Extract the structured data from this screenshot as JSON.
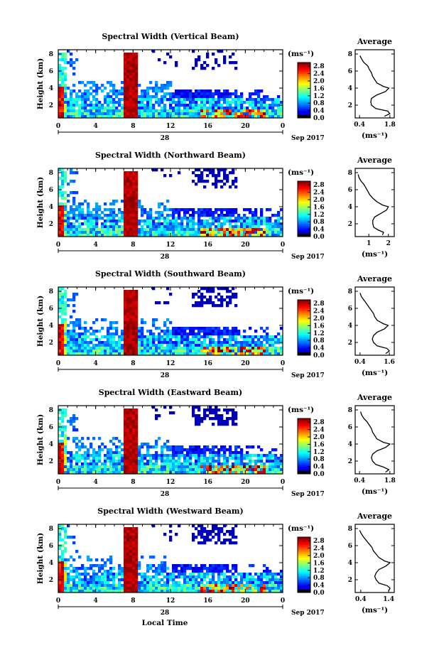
{
  "chart_data": [
    {
      "type": "heatmap",
      "title": "Spectral Width (Vertical Beam)",
      "ylabel": "Height (km)",
      "y_ticks": [
        "2",
        "4",
        "6",
        "8"
      ],
      "x_ticks": [
        "0",
        "4",
        "8",
        "12",
        "16",
        "20",
        "0"
      ],
      "date_day": "28",
      "month_label": "Sep 2017",
      "colorbar": {
        "unit": "(ms⁻¹)",
        "ticks": [
          "0.0",
          "0.4",
          "0.8",
          "1.2",
          "1.6",
          "2.0",
          "2.4",
          "2.8"
        ],
        "range": [
          0,
          3.0
        ]
      },
      "average": {
        "title": "Average",
        "xlabel": "(ms⁻¹)",
        "x_ticks": [
          "0.4",
          "1.8"
        ],
        "xlim": [
          0.2,
          2.0
        ],
        "y_ticks": [
          "2",
          "4",
          "6",
          "8"
        ],
        "heights": [
          0.7,
          1.0,
          1.3,
          1.6,
          2.0,
          2.4,
          2.8,
          3.2,
          3.6,
          4.0,
          4.2,
          4.6,
          5.0,
          5.4,
          5.8,
          6.2,
          6.6,
          7.0,
          7.4,
          7.8
        ],
        "values": [
          1.55,
          1.8,
          1.7,
          1.15,
          0.95,
          0.92,
          0.95,
          1.2,
          1.6,
          1.75,
          1.5,
          1.2,
          1.1,
          1.0,
          0.95,
          0.85,
          0.78,
          0.6,
          0.5,
          0.42
        ]
      }
    },
    {
      "type": "heatmap",
      "title": "Spectral Width (Northward Beam)",
      "ylabel": "Height (km)",
      "y_ticks": [
        "2",
        "4",
        "6",
        "8"
      ],
      "x_ticks": [
        "0",
        "4",
        "8",
        "12",
        "16",
        "20",
        "0"
      ],
      "date_day": "28",
      "month_label": "Sep 2017",
      "colorbar": {
        "unit": "(ms⁻¹)",
        "ticks": [
          "0.0",
          "0.4",
          "0.8",
          "1.2",
          "1.6",
          "2.0",
          "2.4",
          "2.8"
        ],
        "range": [
          0,
          3.0
        ]
      },
      "average": {
        "title": "Average",
        "xlabel": "(ms⁻¹)",
        "x_ticks": [
          "1",
          "2"
        ],
        "xlim": [
          0.3,
          2.3
        ],
        "y_ticks": [
          "2",
          "4",
          "6",
          "8"
        ],
        "heights": [
          0.7,
          1.0,
          1.3,
          1.6,
          2.0,
          2.4,
          2.8,
          3.2,
          3.6,
          4.0,
          4.2,
          4.6,
          5.0,
          5.4,
          5.8,
          6.2,
          6.6,
          7.0,
          7.4,
          7.8
        ],
        "values": [
          1.7,
          1.75,
          1.45,
          1.25,
          1.2,
          1.2,
          1.3,
          1.6,
          1.9,
          2.0,
          1.7,
          1.4,
          1.2,
          1.05,
          0.95,
          0.85,
          0.75,
          0.6,
          0.5,
          0.45
        ]
      }
    },
    {
      "type": "heatmap",
      "title": "Spectral Width (Southward Beam)",
      "ylabel": "Height (km)",
      "y_ticks": [
        "2",
        "4",
        "6",
        "8"
      ],
      "x_ticks": [
        "0",
        "4",
        "8",
        "12",
        "16",
        "20",
        "0"
      ],
      "date_day": "28",
      "month_label": "Sep 2017",
      "colorbar": {
        "unit": "(ms⁻¹)",
        "ticks": [
          "0.0",
          "0.4",
          "0.8",
          "1.2",
          "1.6",
          "2.0",
          "2.4",
          "2.8"
        ],
        "range": [
          0,
          3.0
        ]
      },
      "average": {
        "title": "Average",
        "xlabel": "(ms⁻¹)",
        "x_ticks": [
          "0.4",
          "1.6"
        ],
        "xlim": [
          0.2,
          1.8
        ],
        "y_ticks": [
          "2",
          "4",
          "6",
          "8"
        ],
        "heights": [
          0.7,
          1.0,
          1.3,
          1.6,
          2.0,
          2.4,
          2.8,
          3.2,
          3.6,
          4.0,
          4.2,
          4.6,
          5.0,
          5.4,
          5.8,
          6.2,
          6.6,
          7.0,
          7.4,
          7.8
        ],
        "values": [
          1.45,
          1.6,
          1.5,
          1.1,
          0.95,
          0.9,
          0.95,
          1.1,
          1.4,
          1.55,
          1.35,
          1.1,
          1.0,
          0.95,
          0.85,
          0.75,
          0.65,
          0.55,
          0.45,
          0.4
        ]
      }
    },
    {
      "type": "heatmap",
      "title": "Spectral Width (Eastward Beam)",
      "ylabel": "Height (km)",
      "y_ticks": [
        "2",
        "4",
        "6",
        "8"
      ],
      "x_ticks": [
        "0",
        "4",
        "8",
        "12",
        "16",
        "20",
        "0"
      ],
      "date_day": "28",
      "month_label": "Sep 2017",
      "colorbar": {
        "unit": "(ms⁻¹)",
        "ticks": [
          "0.0",
          "0.4",
          "0.8",
          "1.2",
          "1.6",
          "2.0",
          "2.4",
          "2.8"
        ],
        "range": [
          0,
          3.0
        ]
      },
      "average": {
        "title": "Average",
        "xlabel": "(ms⁻¹)",
        "x_ticks": [
          "0.4",
          "1.8"
        ],
        "xlim": [
          0.2,
          2.0
        ],
        "y_ticks": [
          "2",
          "4",
          "6",
          "8"
        ],
        "heights": [
          0.7,
          1.0,
          1.3,
          1.6,
          2.0,
          2.4,
          2.8,
          3.2,
          3.6,
          4.0,
          4.2,
          4.6,
          5.0,
          5.4,
          5.8,
          6.2,
          6.6,
          7.0,
          7.4,
          7.8
        ],
        "values": [
          1.6,
          1.75,
          1.5,
          1.15,
          1.0,
          0.95,
          1.0,
          1.2,
          1.6,
          1.8,
          1.5,
          1.2,
          1.1,
          1.0,
          0.95,
          0.85,
          0.75,
          0.6,
          0.5,
          0.45
        ]
      }
    },
    {
      "type": "heatmap",
      "title": "Spectral Width (Westward Beam)",
      "ylabel": "Height (km)",
      "y_ticks": [
        "2",
        "4",
        "6",
        "8"
      ],
      "x_ticks": [
        "0",
        "4",
        "8",
        "12",
        "16",
        "20",
        "0"
      ],
      "date_day": "28",
      "month_label": "Sep 2017",
      "xlabel": "Local Time",
      "colorbar": {
        "unit": "(ms⁻¹)",
        "ticks": [
          "0.0",
          "0.4",
          "0.8",
          "1.2",
          "1.6",
          "2.0",
          "2.4",
          "2.8"
        ],
        "range": [
          0,
          3.0
        ]
      },
      "average": {
        "title": "Average",
        "xlabel": "(ms⁻¹)",
        "x_ticks": [
          "0.4",
          "1.4"
        ],
        "xlim": [
          0.2,
          1.6
        ],
        "y_ticks": [
          "2",
          "4",
          "6",
          "8"
        ],
        "heights": [
          0.7,
          1.0,
          1.3,
          1.6,
          2.0,
          2.4,
          2.8,
          3.2,
          3.6,
          4.0,
          4.2,
          4.6,
          5.0,
          5.4,
          5.8,
          6.2,
          6.6,
          7.0,
          7.4,
          7.8
        ],
        "values": [
          1.4,
          1.45,
          1.35,
          1.05,
          0.95,
          0.9,
          0.95,
          1.05,
          1.3,
          1.45,
          1.25,
          1.05,
          0.95,
          0.85,
          0.8,
          0.7,
          0.6,
          0.5,
          0.42,
          0.36
        ]
      }
    }
  ]
}
